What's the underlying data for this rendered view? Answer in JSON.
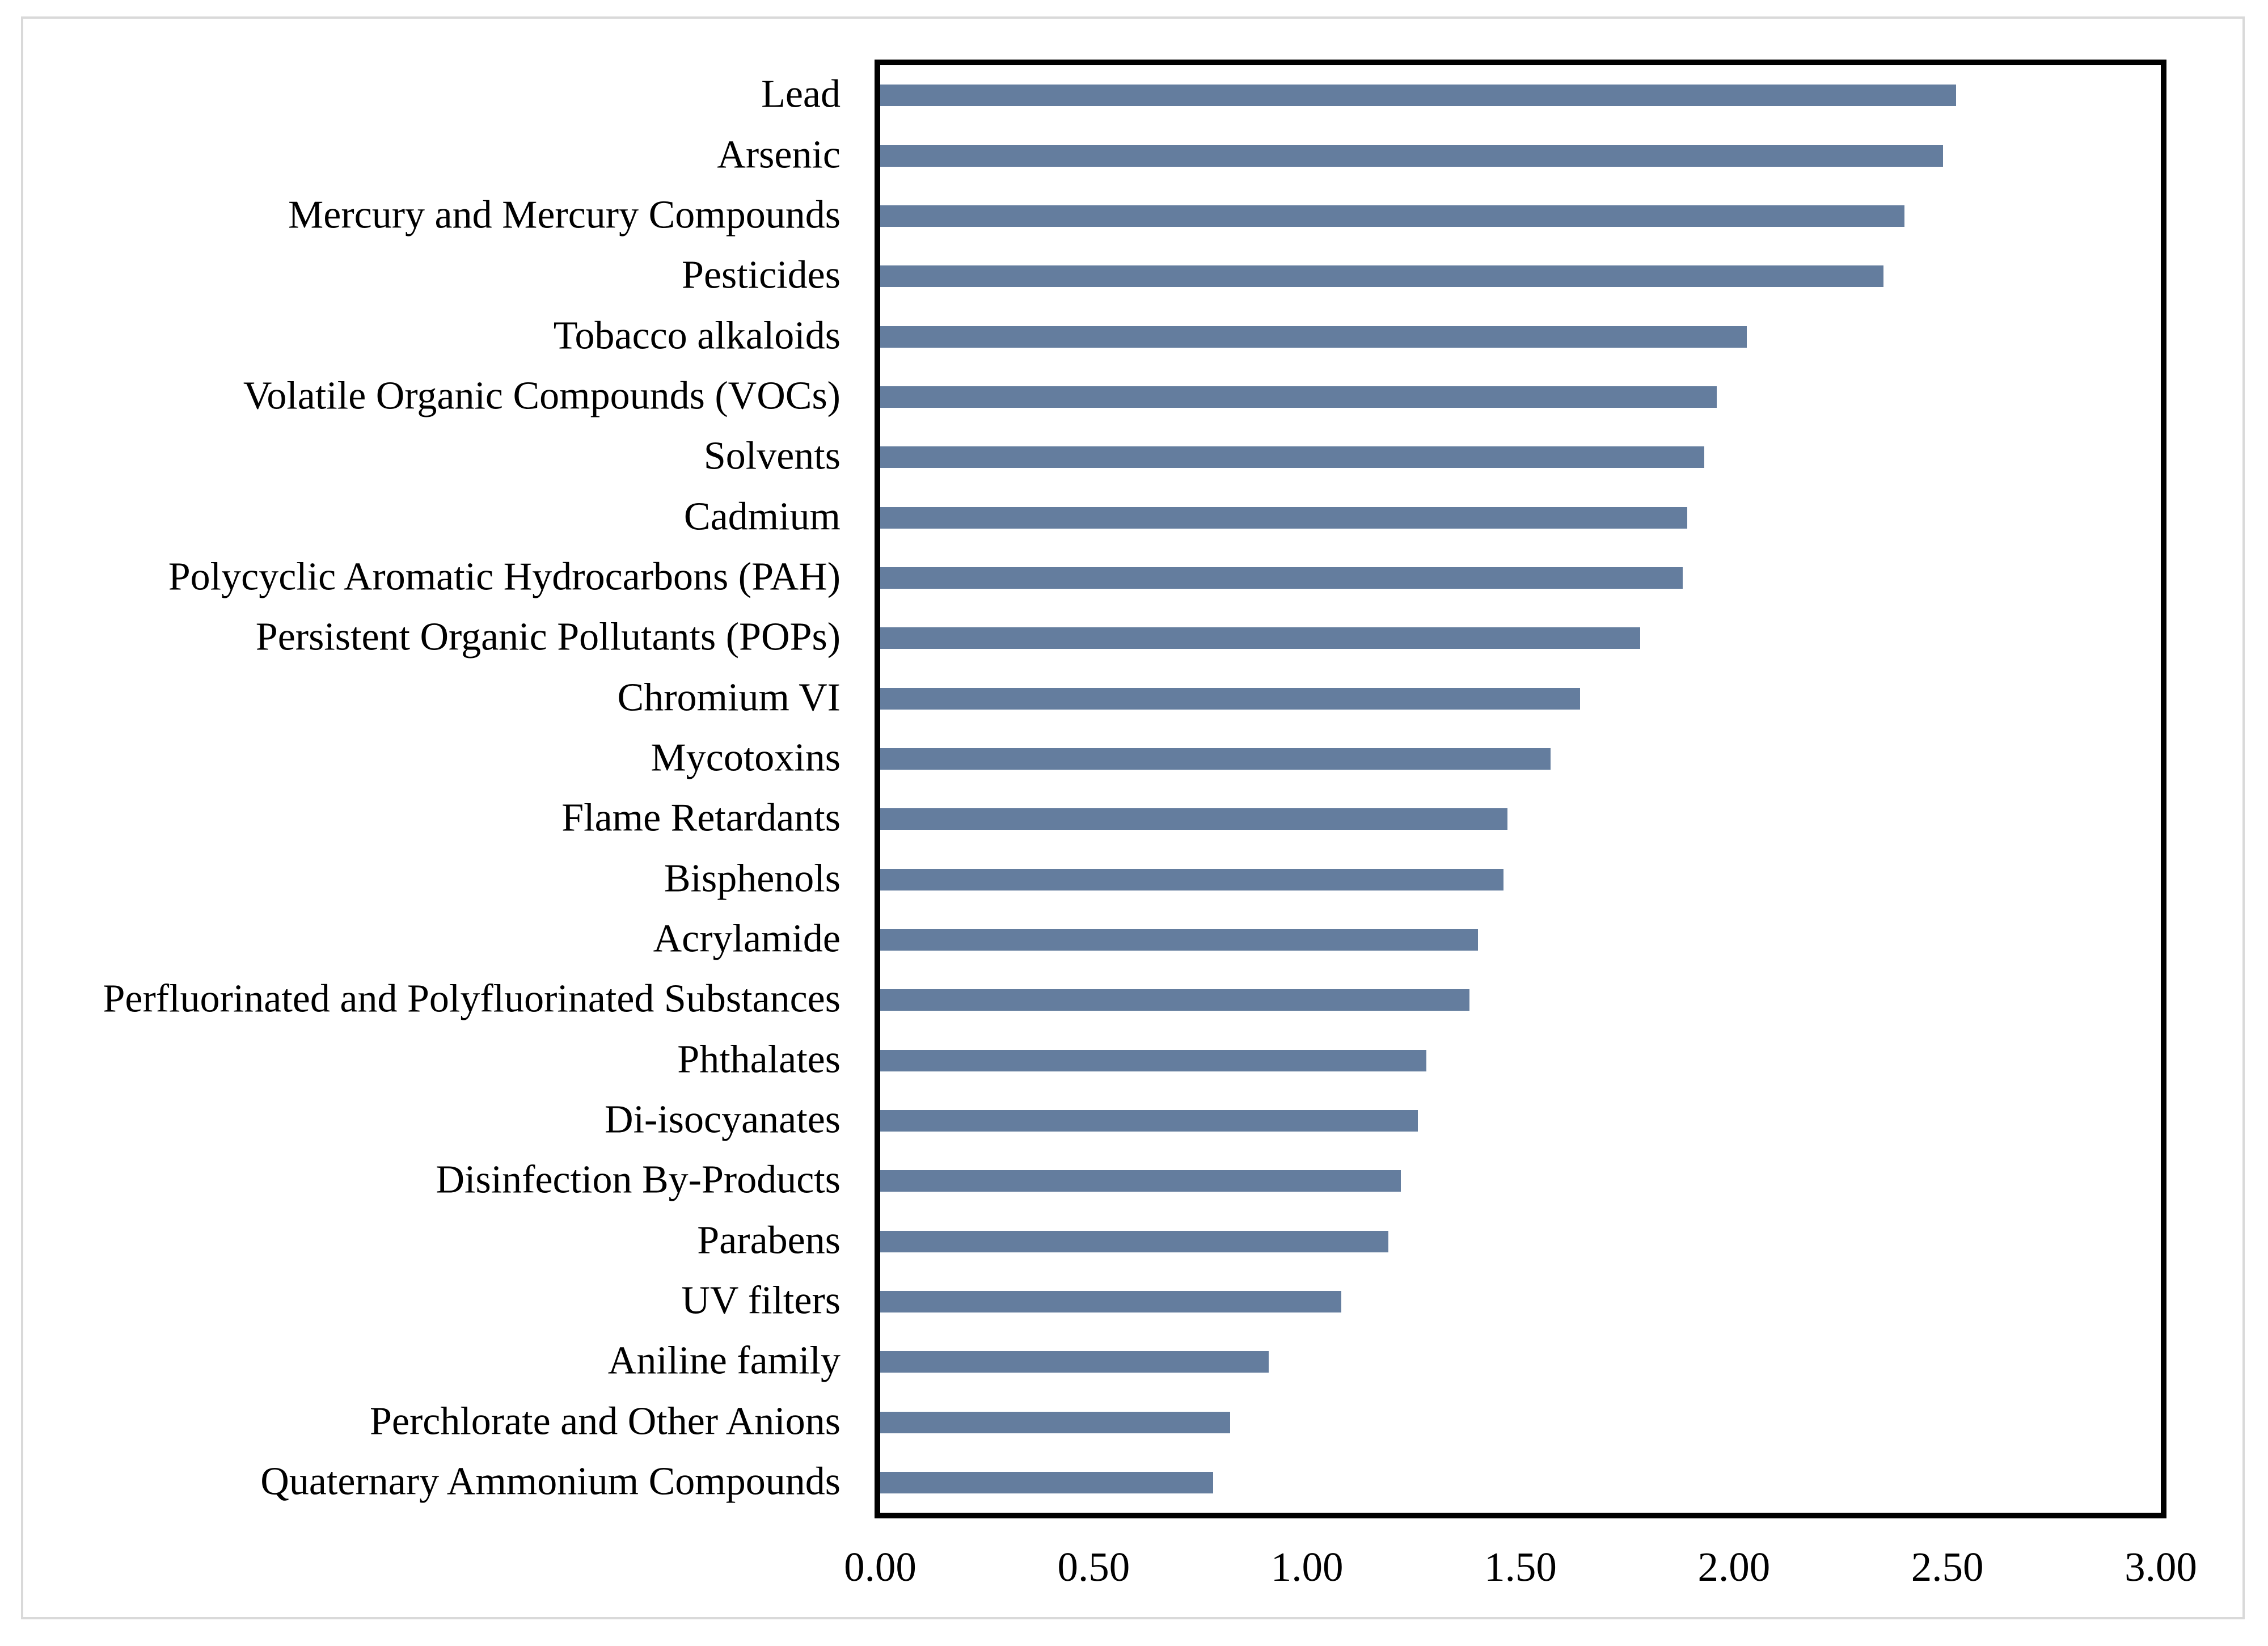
{
  "figure": {
    "background_color": "#ffffff",
    "frame_color": "#d9d9d9",
    "plot_border_color": "#000000"
  },
  "chart_data": {
    "type": "bar",
    "orientation": "horizontal",
    "title": "",
    "xlabel": "",
    "ylabel": "",
    "xlim": [
      0,
      3
    ],
    "grid": false,
    "legend": false,
    "bar_color": "#647d9e",
    "x_tick_labels": [
      "0.00",
      "0.50",
      "1.00",
      "1.50",
      "2.00",
      "2.50",
      "3.00"
    ],
    "x_tick_values": [
      0.0,
      0.5,
      1.0,
      1.5,
      2.0,
      2.5,
      3.0
    ],
    "categories": [
      "Lead",
      "Arsenic",
      "Mercury and Mercury Compounds",
      "Pesticides",
      "Tobacco alkaloids",
      "Volatile Organic Compounds (VOCs)",
      "Solvents",
      "Cadmium",
      "Polycyclic Aromatic Hydrocarbons (PAH)",
      "Persistent Organic Pollutants (POPs)",
      "Chromium VI",
      "Mycotoxins",
      "Flame Retardants",
      "Bisphenols",
      "Acrylamide",
      "Perfluorinated and Polyfluorinated Substances",
      "Phthalates",
      "Di-isocyanates",
      "Disinfection By-Products",
      "Parabens",
      "UV filters",
      "Aniline family",
      "Perchlorate and Other Anions",
      "Quaternary Ammonium Compounds"
    ],
    "values": [
      2.52,
      2.49,
      2.4,
      2.35,
      2.03,
      1.96,
      1.93,
      1.89,
      1.88,
      1.78,
      1.64,
      1.57,
      1.47,
      1.46,
      1.4,
      1.38,
      1.28,
      1.26,
      1.22,
      1.19,
      1.08,
      0.91,
      0.82,
      0.78
    ]
  }
}
